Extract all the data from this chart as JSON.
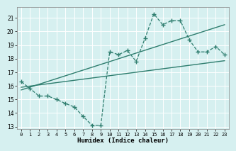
{
  "xlabel": "Humidex (Indice chaleur)",
  "bg_color": "#d6f0f0",
  "line_color": "#2e7d6e",
  "grid_color": "#ffffff",
  "xlim": [
    -0.5,
    23.5
  ],
  "ylim": [
    12.8,
    21.8
  ],
  "yticks": [
    13,
    14,
    15,
    16,
    17,
    18,
    19,
    20,
    21
  ],
  "xticks": [
    0,
    1,
    2,
    3,
    4,
    5,
    6,
    7,
    8,
    9,
    10,
    11,
    12,
    13,
    14,
    15,
    16,
    17,
    18,
    19,
    20,
    21,
    22,
    23
  ],
  "line1_x": [
    0,
    1,
    2,
    3,
    4,
    5,
    6,
    7,
    8,
    9,
    10,
    11,
    12,
    13,
    14,
    15,
    16,
    17,
    18,
    19,
    20,
    21,
    22,
    23
  ],
  "line1_y": [
    16.3,
    15.8,
    15.25,
    15.25,
    15.0,
    14.7,
    14.45,
    13.75,
    13.1,
    13.1,
    18.5,
    18.3,
    18.6,
    17.8,
    19.5,
    21.3,
    20.5,
    20.8,
    20.8,
    19.4,
    18.5,
    18.5,
    18.9,
    18.3
  ],
  "line2_x": [
    0,
    23
  ],
  "line2_y": [
    15.9,
    17.85
  ],
  "line3_x": [
    0,
    23
  ],
  "line3_y": [
    15.7,
    20.5
  ]
}
